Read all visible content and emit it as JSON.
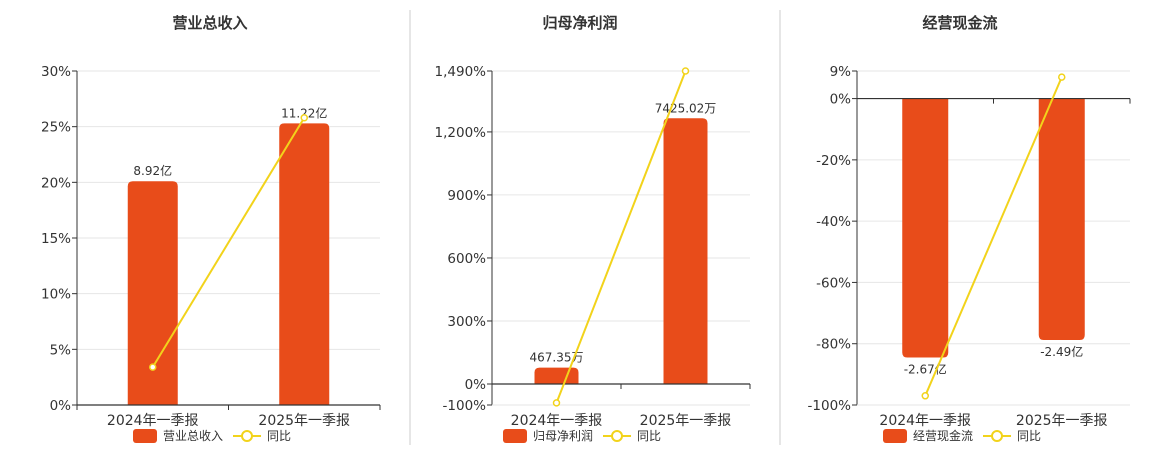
{
  "legend_labels": {
    "yoy": "同比"
  },
  "colors": {
    "bar": "#E84C1A",
    "line": "#F2D31B",
    "axis": "#333333",
    "grid": "#E6E6E6",
    "divider": "#CCCCCC",
    "text": "#333333"
  },
  "chart_data": [
    {
      "type": "bar",
      "title": "营业总收入",
      "categories": [
        "2024年一季报",
        "2025年一季报"
      ],
      "series": [
        {
          "name": "营业总收入",
          "type": "bar",
          "axis": "value",
          "values": [
            8.92,
            11.22
          ],
          "labels": [
            "8.92亿",
            "11.22亿"
          ]
        },
        {
          "name": "同比",
          "type": "line",
          "axis": "percent",
          "values": [
            3.4,
            25.8
          ]
        }
      ],
      "ylim": [
        0,
        30
      ],
      "yticks": [
        0,
        5,
        10,
        15,
        20,
        25,
        30
      ],
      "ytick_labels": [
        "0%",
        "5%",
        "10%",
        "15%",
        "20%",
        "25%",
        "30%"
      ],
      "bar_heights_pct": [
        20.1,
        25.3
      ],
      "grid": true,
      "legend": "bottom"
    },
    {
      "type": "bar",
      "title": "归母净利润",
      "categories": [
        "2024年一季报",
        "2025年一季报"
      ],
      "series": [
        {
          "name": "归母净利润",
          "type": "bar",
          "axis": "value",
          "values": [
            467.35,
            7425.02
          ],
          "labels": [
            "467.35万",
            "7425.02万"
          ]
        },
        {
          "name": "同比",
          "type": "line",
          "axis": "percent",
          "values": [
            -90,
            1490
          ]
        }
      ],
      "ylim": [
        -100,
        1490
      ],
      "yticks": [
        -100,
        0,
        300,
        600,
        900,
        1200,
        1490
      ],
      "ytick_labels": [
        "-100%",
        "0%",
        "300%",
        "600%",
        "900%",
        "1,200%",
        "1,490%"
      ],
      "bar_heights_pct": [
        78,
        1265
      ],
      "grid": true,
      "legend": "bottom"
    },
    {
      "type": "bar",
      "title": "经营现金流",
      "categories": [
        "2024年一季报",
        "2025年一季报"
      ],
      "series": [
        {
          "name": "经营现金流",
          "type": "bar",
          "axis": "value",
          "values": [
            -2.67,
            -2.49
          ],
          "labels": [
            "-2.67亿",
            "-2.49亿"
          ]
        },
        {
          "name": "同比",
          "type": "line",
          "axis": "percent",
          "values": [
            -97,
            7
          ]
        }
      ],
      "ylim": [
        -100,
        9
      ],
      "yticks": [
        -100,
        -80,
        -60,
        -40,
        -20,
        0,
        9
      ],
      "ytick_labels": [
        "-100%",
        "-80%",
        "-60%",
        "-40%",
        "-20%",
        "0%",
        "9%"
      ],
      "bar_heights_pct": [
        -84.5,
        -78.8
      ],
      "grid": true,
      "legend": "bottom"
    }
  ]
}
